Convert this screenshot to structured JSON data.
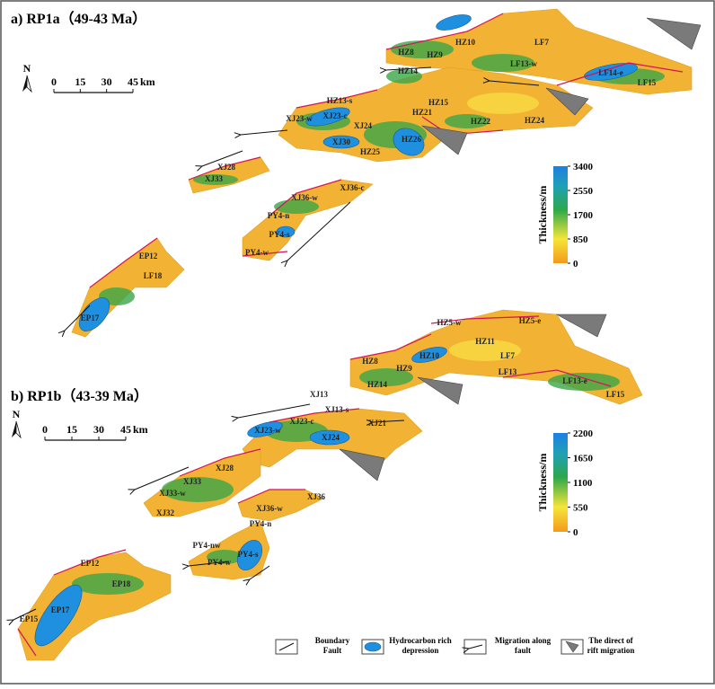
{
  "panels": [
    {
      "title": "a) RP1a（49-43 Ma）",
      "north": "N",
      "scale": {
        "ticks": [
          0,
          15,
          30,
          45
        ],
        "unit": "km"
      },
      "colorbar": {
        "title": "Thickness/m",
        "ticks": [
          3400,
          2550,
          1700,
          850,
          0
        ]
      },
      "labels": [
        "HZ8",
        "HZ9",
        "HZ10",
        "LF7",
        "HZ14",
        "LF13-w",
        "LF14-e",
        "LF15",
        "HZ13-s",
        "HZ15",
        "HZ21",
        "HZ22",
        "HZ24",
        "XJ23-w",
        "XJ23-c",
        "XJ24",
        "XJ30",
        "HZ26",
        "HZ25",
        "XJ28",
        "XJ33",
        "XJ36-w",
        "XJ36-c",
        "PY4-n",
        "PY4-s",
        "PY4-w",
        "EP12",
        "LF18",
        "EP17"
      ]
    },
    {
      "title": "b) RP1b（43-39 Ma）",
      "north": "N",
      "scale": {
        "ticks": [
          0,
          15,
          30,
          45
        ],
        "unit": "km"
      },
      "colorbar": {
        "title": "Thickness/m",
        "ticks": [
          2200,
          1650,
          1100,
          550,
          0
        ]
      },
      "labels": [
        "HZ5-w",
        "HZ5-e",
        "HZ11",
        "HZ8",
        "HZ10",
        "LF7",
        "HZ9",
        "LF13",
        "LF13-e",
        "HZ14",
        "LF15",
        "XJ13",
        "XJ13-s",
        "XJ21",
        "XJ23-w",
        "XJ23-c",
        "XJ24",
        "XJ28",
        "XJ33",
        "XJ33-w",
        "XJ32",
        "XJ36-w",
        "XJ36",
        "PY4-n",
        "PY4-nw",
        "PY4-w",
        "PY4-s",
        "EP12",
        "EP18",
        "EP17",
        "EP15"
      ]
    }
  ],
  "legend": [
    "Boundary Fault",
    "Hydrocarbon rich depression",
    "Migration along fault",
    "The direct of rift migration"
  ]
}
